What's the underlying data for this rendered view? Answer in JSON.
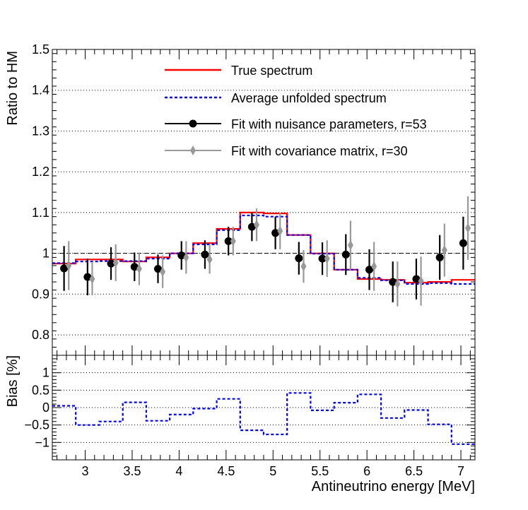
{
  "chart_data": [
    {
      "type": "line",
      "panel": "top",
      "ylabel": "Ratio to HM",
      "xlim": [
        2.65,
        7.15
      ],
      "ylim": [
        0.75,
        1.5
      ],
      "yticks": [
        0.8,
        0.9,
        1,
        1.1,
        1.2,
        1.3,
        1.4,
        1.5
      ],
      "ytick_labels": [
        "0.8",
        "0.9",
        "1",
        "1.1",
        "1.2",
        "1.3",
        "1.4",
        "1.5"
      ],
      "grid": "horizontal-dotted",
      "reference_line": 1.0,
      "legend_position": "top-center",
      "bin_edges": [
        2.65,
        2.9,
        3.15,
        3.4,
        3.65,
        3.9,
        4.15,
        4.4,
        4.65,
        4.9,
        5.15,
        5.4,
        5.65,
        5.9,
        6.15,
        6.4,
        6.65,
        6.9,
        7.15
      ],
      "series": [
        {
          "name": "True spectrum",
          "style": "step",
          "color": "#ff0000",
          "values": [
            0.975,
            0.985,
            0.985,
            0.98,
            0.99,
            1.0,
            1.025,
            1.06,
            1.1,
            1.098,
            1.045,
            1.0,
            0.96,
            0.937,
            0.935,
            0.928,
            0.93,
            0.935
          ]
        },
        {
          "name": "Average unfolded spectrum",
          "style": "step-dashed",
          "color": "#0000ff",
          "values": [
            0.976,
            0.98,
            0.981,
            0.981,
            0.987,
            1.0,
            1.022,
            1.057,
            1.093,
            1.09,
            1.045,
            0.999,
            0.96,
            0.94,
            0.934,
            0.925,
            0.927,
            0.925
          ]
        },
        {
          "name": "Fit with nuisance parameters, r=53",
          "style": "points-circle",
          "color": "#000000",
          "x": [
            2.775,
            3.025,
            3.275,
            3.525,
            3.775,
            4.025,
            4.275,
            4.525,
            4.775,
            5.025,
            5.275,
            5.525,
            5.775,
            6.025,
            6.275,
            6.525,
            6.775,
            7.025
          ],
          "y": [
            0.963,
            0.942,
            0.975,
            0.967,
            0.962,
            0.995,
            0.997,
            1.03,
            1.065,
            1.05,
            0.988,
            0.987,
            0.997,
            0.96,
            0.93,
            0.937,
            0.99,
            1.025
          ],
          "err": [
            0.055,
            0.045,
            0.04,
            0.035,
            0.035,
            0.035,
            0.035,
            0.035,
            0.035,
            0.04,
            0.04,
            0.04,
            0.05,
            0.05,
            0.05,
            0.05,
            0.055,
            0.065
          ]
        },
        {
          "name": "Fit with covariance matrix, r=30",
          "style": "points-diamond",
          "color": "#999999",
          "x": [
            2.825,
            3.075,
            3.325,
            3.575,
            3.825,
            4.075,
            4.325,
            4.575,
            4.825,
            5.075,
            5.325,
            5.575,
            5.825,
            6.075,
            6.325,
            6.575,
            6.825,
            7.075
          ],
          "y": [
            0.97,
            0.937,
            0.977,
            0.962,
            0.955,
            0.99,
            0.985,
            1.03,
            1.07,
            1.055,
            0.968,
            0.987,
            1.02,
            0.968,
            0.925,
            0.932,
            1.008,
            1.062
          ],
          "err": [
            0.06,
            0.04,
            0.045,
            0.04,
            0.04,
            0.04,
            0.035,
            0.035,
            0.04,
            0.045,
            0.04,
            0.045,
            0.06,
            0.06,
            0.055,
            0.06,
            0.065,
            0.078
          ]
        }
      ]
    },
    {
      "type": "line",
      "panel": "bottom",
      "xlabel": "Antineutrino energy [MeV]",
      "ylabel": "Bias [%]",
      "xlim": [
        2.65,
        7.15
      ],
      "ylim": [
        -1.5,
        1.5
      ],
      "xticks": [
        3,
        3.5,
        4,
        4.5,
        5,
        5.5,
        6,
        6.5,
        7
      ],
      "xtick_labels": [
        "3",
        "3.5",
        "4",
        "4.5",
        "5",
        "5.5",
        "6",
        "6.5",
        "7"
      ],
      "yticks": [
        -1,
        -0.5,
        0,
        0.5,
        1
      ],
      "ytick_labels": [
        "−1",
        "−0.5",
        "0",
        "0.5",
        "1"
      ],
      "grid": "horizontal-dotted",
      "bin_edges": [
        2.65,
        2.9,
        3.15,
        3.4,
        3.65,
        3.9,
        4.15,
        4.4,
        4.65,
        4.9,
        5.15,
        5.4,
        5.65,
        5.9,
        6.15,
        6.4,
        6.65,
        6.9,
        7.15
      ],
      "series": [
        {
          "name": "Bias",
          "style": "step-dashed",
          "color": "#0000ff",
          "values": [
            0.05,
            -0.5,
            -0.4,
            0.15,
            -0.38,
            -0.2,
            -0.03,
            0.25,
            -0.65,
            -0.77,
            0.42,
            -0.08,
            0.14,
            0.38,
            -0.3,
            -0.07,
            -0.48,
            -1.05
          ]
        }
      ]
    }
  ]
}
